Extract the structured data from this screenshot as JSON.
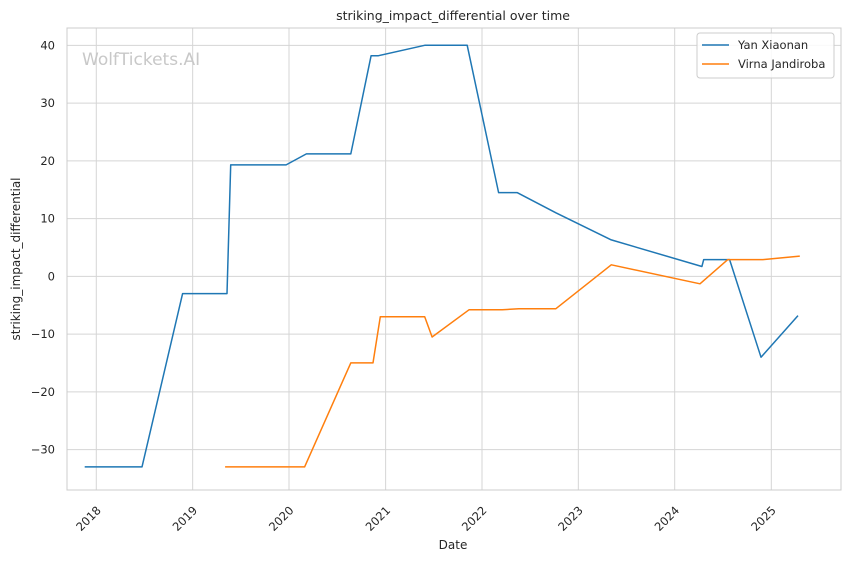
{
  "chart_data": {
    "type": "line",
    "title": "striking_impact_differential over time",
    "xlabel": "Date",
    "ylabel": "striking_impact_differential",
    "watermark": "WolfTickets.AI",
    "xlim": [
      "2017-09-12",
      "2025-09-22"
    ],
    "ylim": [
      -37,
      43
    ],
    "yticks": [
      -30,
      -20,
      -10,
      0,
      10,
      20,
      30,
      40
    ],
    "ytick_labels": [
      "−30",
      "−20",
      "−10",
      "0",
      "10",
      "20",
      "30",
      "40"
    ],
    "xticks": [
      "2018-01-01",
      "2019-01-01",
      "2020-01-01",
      "2021-01-01",
      "2022-01-01",
      "2023-01-01",
      "2024-01-01",
      "2025-01-01"
    ],
    "xtick_labels": [
      "2018",
      "2019",
      "2020",
      "2021",
      "2022",
      "2023",
      "2024",
      "2025"
    ],
    "grid": true,
    "legend_position": "top-right",
    "series": [
      {
        "name": "Yan Xiaonan",
        "color": "#1f77b4",
        "points": [
          {
            "x": "2017-11-18",
            "y": -33
          },
          {
            "x": "2018-06-23",
            "y": -33
          },
          {
            "x": "2018-11-24",
            "y": -3
          },
          {
            "x": "2019-05-11",
            "y": -3
          },
          {
            "x": "2019-05-25",
            "y": 19.3
          },
          {
            "x": "2019-12-21",
            "y": 19.3
          },
          {
            "x": "2020-03-07",
            "y": 21.2
          },
          {
            "x": "2020-08-22",
            "y": 21.2
          },
          {
            "x": "2020-11-07",
            "y": 38.2
          },
          {
            "x": "2020-12-05",
            "y": 38.2
          },
          {
            "x": "2021-05-29",
            "y": 40
          },
          {
            "x": "2021-11-06",
            "y": 40
          },
          {
            "x": "2022-03-05",
            "y": 14.5
          },
          {
            "x": "2022-05-14",
            "y": 14.5
          },
          {
            "x": "2022-10-08",
            "y": 11
          },
          {
            "x": "2023-05-06",
            "y": 6.3
          },
          {
            "x": "2024-04-13",
            "y": 1.7
          },
          {
            "x": "2024-04-20",
            "y": 2.9
          },
          {
            "x": "2024-07-27",
            "y": 2.9
          },
          {
            "x": "2024-11-23",
            "y": -14
          },
          {
            "x": "2025-04-12",
            "y": -6.8
          }
        ]
      },
      {
        "name": "Virna Jandiroba",
        "color": "#ff7f0e",
        "points": [
          {
            "x": "2019-05-04",
            "y": -33
          },
          {
            "x": "2020-02-29",
            "y": -33
          },
          {
            "x": "2020-08-22",
            "y": -15
          },
          {
            "x": "2020-11-14",
            "y": -15
          },
          {
            "x": "2020-12-12",
            "y": -7
          },
          {
            "x": "2021-05-29",
            "y": -7
          },
          {
            "x": "2021-06-26",
            "y": -10.5
          },
          {
            "x": "2021-11-13",
            "y": -5.8
          },
          {
            "x": "2022-03-19",
            "y": -5.8
          },
          {
            "x": "2022-05-21",
            "y": -5.6
          },
          {
            "x": "2022-10-08",
            "y": -5.6
          },
          {
            "x": "2023-05-06",
            "y": 2
          },
          {
            "x": "2024-04-06",
            "y": -1.3
          },
          {
            "x": "2024-07-20",
            "y": 2.9
          },
          {
            "x": "2024-11-30",
            "y": 2.9
          },
          {
            "x": "2025-04-19",
            "y": 3.5
          }
        ]
      }
    ]
  }
}
